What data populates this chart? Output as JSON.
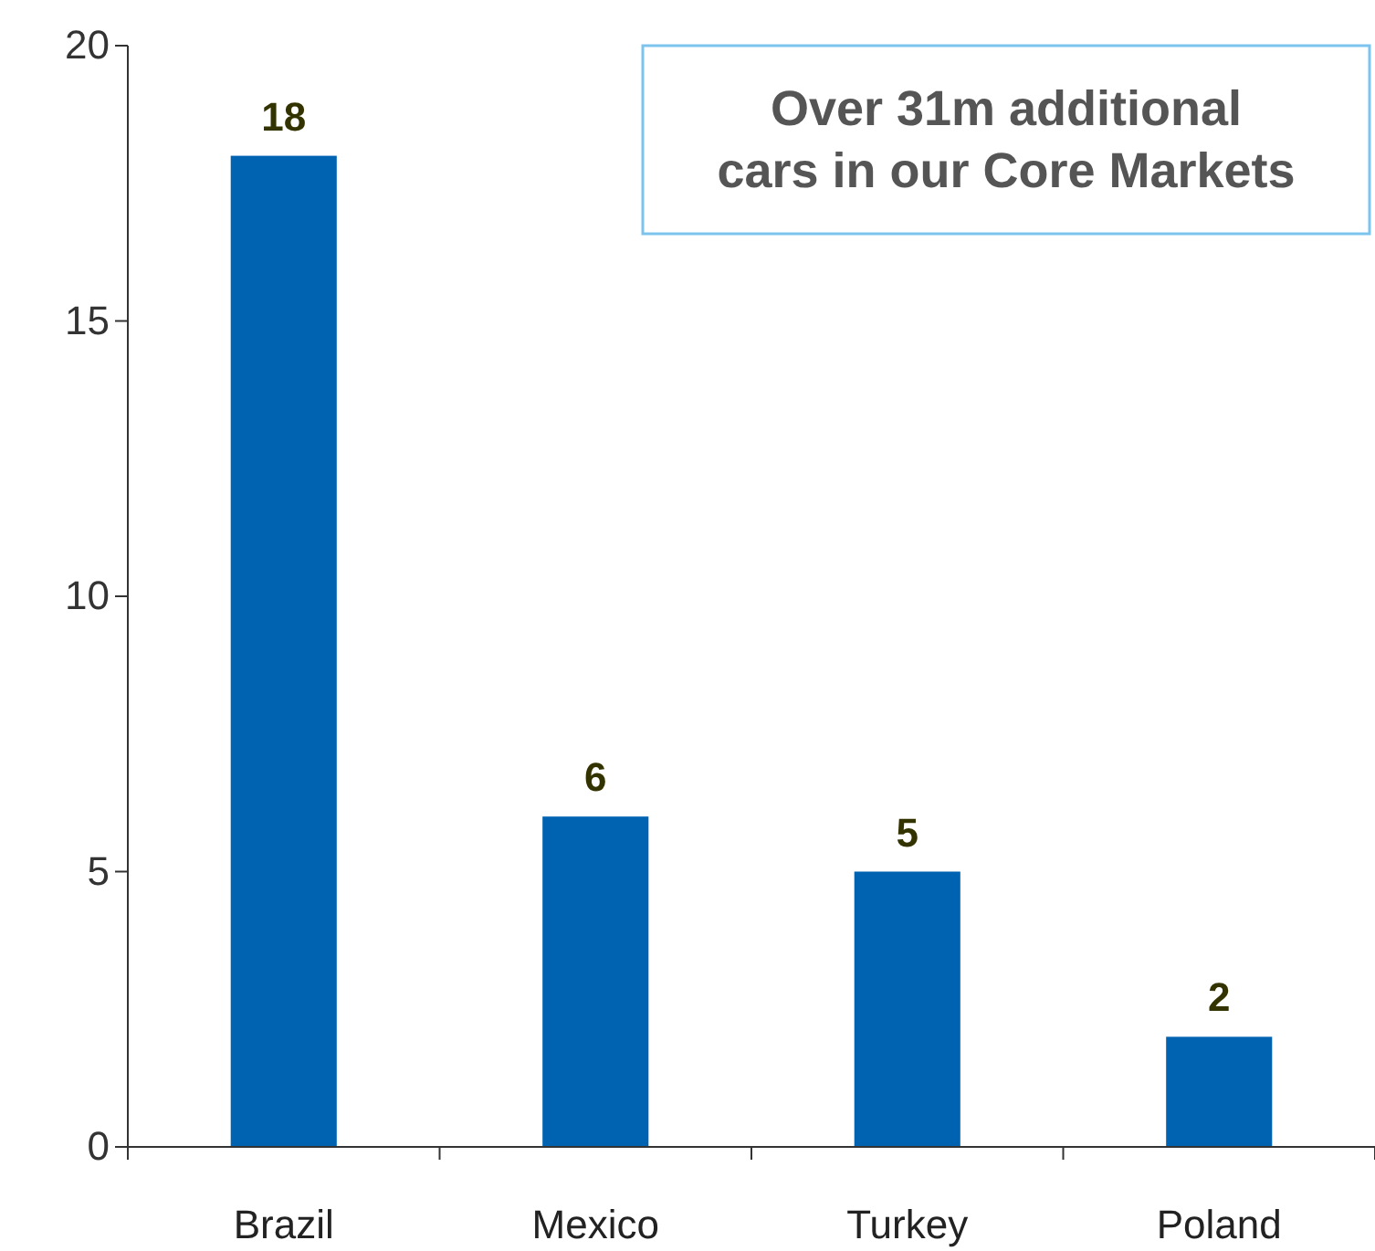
{
  "chart_data": {
    "type": "bar",
    "categories": [
      "Brazil",
      "Mexico",
      "Turkey",
      "Poland"
    ],
    "values": [
      18,
      6,
      5,
      2
    ],
    "color": "#0063b1",
    "ylim": [
      0,
      20
    ],
    "yticks": [
      0,
      5,
      10,
      15,
      20
    ],
    "grid": false,
    "data_labels": true,
    "annotations": [
      "Over 31m additional\ncars in our Core Markets"
    ]
  }
}
